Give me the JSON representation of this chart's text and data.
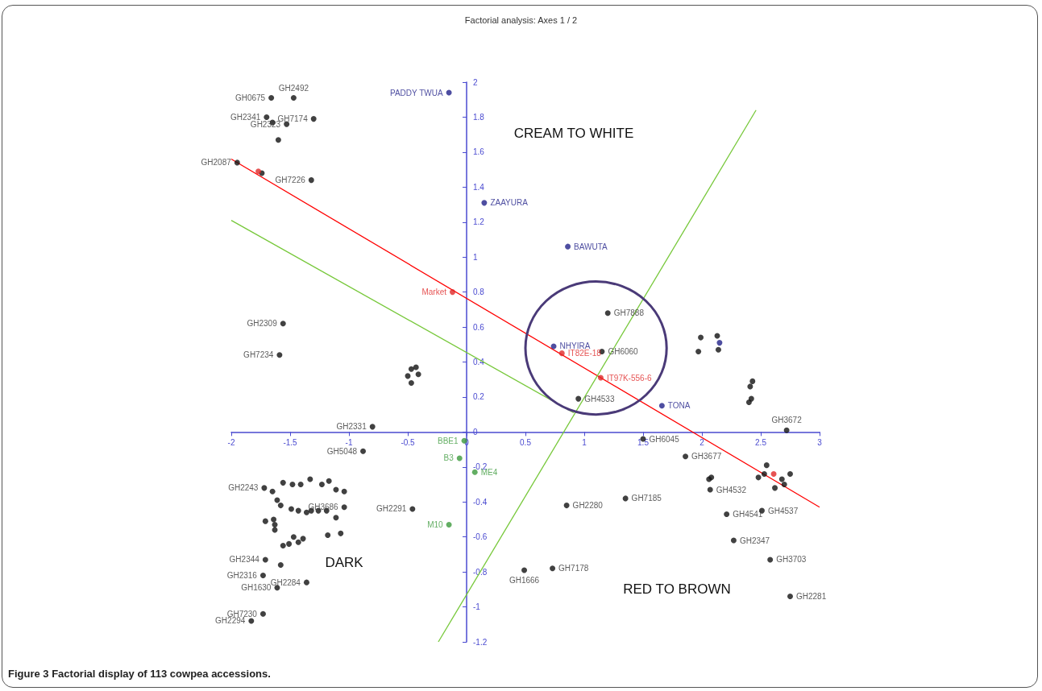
{
  "chart_data": {
    "type": "scatter",
    "title": "Factorial analysis: Axes 1 / 2",
    "marker": "circle",
    "xlim": [
      -2,
      3
    ],
    "xticks": [
      -2,
      -1.5,
      -1,
      -0.5,
      0,
      0.5,
      1,
      1.5,
      2,
      2.5,
      3
    ],
    "ylim": [
      -1.2,
      2
    ],
    "yticks": [
      -1.2,
      -1,
      -0.8,
      -0.6,
      -0.4,
      -0.2,
      0,
      0.2,
      0.4,
      0.6,
      0.8,
      1,
      1.2,
      1.4,
      1.6,
      1.8,
      2
    ],
    "annotations": [
      "CREAM TO WHITE",
      "DARK",
      "RED TO BROWN",
      "Figure 3 Factorial display of 113 cowpea accessions."
    ],
    "series": [
      {
        "color": "#111111",
        "x": [
          -1.66,
          -1.47,
          -1.3,
          -1.7,
          -1.65,
          -1.53,
          -1.6,
          -1.95,
          -1.74,
          -1.32,
          -1.56,
          -1.59,
          -0.47,
          -0.43,
          -0.5,
          -0.41,
          -0.47,
          -0.8,
          -0.88,
          -0.46,
          1.2,
          1.15,
          0.95,
          1.99,
          2.13,
          1.97,
          2.14,
          2.41,
          2.43,
          2.4,
          2.42,
          2.72,
          1.5,
          1.86,
          2.06,
          2.08,
          2.07,
          2.21,
          2.51,
          2.27,
          2.58,
          2.75,
          2.55,
          2.48,
          2.53,
          2.62,
          2.68,
          2.75,
          2.7,
          1.35,
          0.85,
          0.49,
          0.73,
          -1.72,
          -1.65,
          -1.56,
          -1.48,
          -1.41,
          -1.33,
          -1.23,
          -1.17,
          -1.11,
          -1.04,
          -1.61,
          -1.58,
          -1.49,
          -1.43,
          -1.36,
          -1.32,
          -1.26,
          -1.19,
          -1.11,
          -1.04,
          -1.64,
          -1.63,
          -1.71,
          -1.63,
          -1.47,
          -1.51,
          -1.56,
          -1.39,
          -1.43,
          -1.18,
          -1.07,
          -1.71,
          -1.58,
          -1.73,
          -1.61,
          -1.36,
          -1.73,
          -1.83
        ],
        "values": [
          1.91,
          1.91,
          1.79,
          1.8,
          1.77,
          1.76,
          1.67,
          1.54,
          1.48,
          1.44,
          0.62,
          0.44,
          0.36,
          0.37,
          0.32,
          0.33,
          0.28,
          0.03,
          -0.11,
          -0.44,
          0.68,
          0.46,
          0.19,
          0.54,
          0.55,
          0.46,
          0.47,
          0.26,
          0.29,
          0.17,
          0.19,
          0.01,
          -0.04,
          -0.14,
          -0.27,
          -0.26,
          -0.33,
          -0.47,
          -0.45,
          -0.62,
          -0.73,
          -0.94,
          -0.19,
          -0.26,
          -0.24,
          -0.32,
          -0.27,
          -0.24,
          -0.3,
          -0.38,
          -0.42,
          -0.79,
          -0.78,
          -0.32,
          -0.34,
          -0.29,
          -0.3,
          -0.3,
          -0.27,
          -0.3,
          -0.28,
          -0.33,
          -0.34,
          -0.39,
          -0.42,
          -0.44,
          -0.45,
          -0.46,
          -0.45,
          -0.45,
          -0.45,
          -0.49,
          -0.43,
          -0.5,
          -0.53,
          -0.51,
          -0.56,
          -0.6,
          -0.64,
          -0.65,
          -0.61,
          -0.63,
          -0.59,
          -0.58,
          -0.73,
          -0.76,
          -0.82,
          -0.89,
          -0.86,
          -1.04,
          -1.08
        ],
        "value_labels": [
          "GH0675",
          "GH2492",
          "GH7174",
          "GH2341",
          null,
          "GH2323",
          null,
          "GH2087",
          null,
          "GH7226",
          "GH2309",
          "GH7234",
          null,
          null,
          null,
          null,
          null,
          "GH2331",
          "GH5048",
          "GH2291",
          "GH7888",
          "GH6060",
          "GH4533",
          null,
          null,
          null,
          null,
          null,
          null,
          null,
          null,
          "GH3672",
          "GH6045",
          "GH3677",
          null,
          null,
          "GH4532",
          "GH4541",
          "GH4537",
          "GH2347",
          "GH3703",
          "GH2281",
          null,
          null,
          null,
          null,
          null,
          null,
          null,
          "GH7185",
          "GH2280",
          "GH1666",
          "GH7178",
          "GH2243",
          null,
          null,
          null,
          null,
          null,
          null,
          null,
          null,
          null,
          null,
          null,
          null,
          null,
          null,
          null,
          null,
          null,
          null,
          "GH3686",
          null,
          null,
          null,
          null,
          null,
          null,
          null,
          null,
          null,
          null,
          null,
          "GH2344",
          null,
          "GH2316",
          "GH1630",
          "GH2284",
          "GH7230",
          "GH2294"
        ]
      },
      {
        "color": "#22228a",
        "x": [
          -0.15,
          0.15,
          0.86,
          0.74,
          1.66,
          2.15
        ],
        "values": [
          1.94,
          1.31,
          1.06,
          0.49,
          0.15,
          0.51
        ],
        "value_labels": [
          "PADDY TWUA",
          "ZAAYURA",
          "BAWUTA",
          "NHYIRA",
          "TONA",
          null
        ]
      },
      {
        "color": "#e02828",
        "x": [
          -1.77,
          -0.12,
          0.81,
          1.14,
          2.61
        ],
        "values": [
          1.49,
          0.8,
          0.45,
          0.31,
          -0.24
        ],
        "value_labels": [
          null,
          "Market",
          "IT82E-18",
          "IT97K-556-6",
          null
        ]
      },
      {
        "color": "#3c9a3c",
        "x": [
          -0.02,
          -0.06,
          0.07,
          -0.15
        ],
        "values": [
          -0.05,
          -0.15,
          -0.23,
          -0.53
        ],
        "value_labels": [
          "BBE1",
          "B3",
          "ME4",
          "M10"
        ]
      },
      {
        "type": "line",
        "marker": "none",
        "line_style": "solid",
        "color": "#ff0000",
        "x": [
          -2,
          3
        ],
        "values": [
          1.56,
          -0.43
        ]
      },
      {
        "type": "line",
        "marker": "none",
        "line_style": "solid",
        "color": "#77c83a",
        "x": [
          -2,
          0.91
        ],
        "values": [
          1.21,
          0.11
        ]
      },
      {
        "type": "line",
        "marker": "none",
        "line_style": "solid",
        "color": "#77c83a",
        "x": [
          -0.24,
          2.46
        ],
        "values": [
          -1.2,
          1.84
        ]
      }
    ]
  }
}
